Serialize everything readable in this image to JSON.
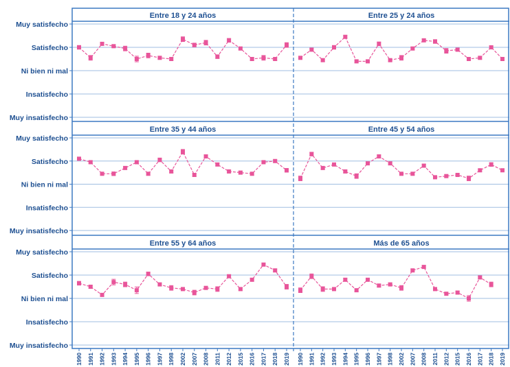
{
  "colors": {
    "frame": "#3b78c2",
    "grid": "#9fbde0",
    "series": "#e8559a",
    "text": "#1d4f91"
  },
  "chart_data": {
    "type": "line",
    "y_categories": [
      "Muy insatisfecho",
      "Insatisfecho",
      "Ni bien ni mal",
      "Satisfecho",
      "Muy satisfecho"
    ],
    "ylim": [
      1,
      5
    ],
    "x": [
      "1990",
      "1991",
      "1992",
      "1993",
      "1994",
      "1995",
      "1996",
      "1997",
      "1998",
      "2002",
      "2007",
      "2008",
      "2011",
      "2012",
      "2015",
      "2016",
      "2017",
      "2018",
      "2019"
    ],
    "panels": [
      {
        "title": "Entre 18 y 24 años",
        "values": [
          4.0,
          3.55,
          4.15,
          4.05,
          3.95,
          3.5,
          3.65,
          3.55,
          3.5,
          4.35,
          4.1,
          4.2,
          3.6,
          4.3,
          3.95,
          3.5,
          3.55,
          3.5,
          4.1
        ],
        "err": [
          0.08,
          0.1,
          0.06,
          0.06,
          0.1,
          0.12,
          0.1,
          0.06,
          0.06,
          0.1,
          0.08,
          0.1,
          0.08,
          0.08,
          0.06,
          0.06,
          0.1,
          0.06,
          0.1
        ]
      },
      {
        "title": "Entre 25 y 24 años",
        "values": [
          3.55,
          3.9,
          3.45,
          4.0,
          4.45,
          3.4,
          3.4,
          4.15,
          3.45,
          3.55,
          3.95,
          4.3,
          4.25,
          3.85,
          3.9,
          3.5,
          3.55,
          4.0,
          3.5
        ],
        "err": [
          0.06,
          0.06,
          0.06,
          0.08,
          0.06,
          0.06,
          0.06,
          0.08,
          0.06,
          0.1,
          0.06,
          0.06,
          0.08,
          0.1,
          0.06,
          0.06,
          0.06,
          0.06,
          0.06
        ]
      },
      {
        "title": "Entre 35 y 44 años",
        "values": [
          4.1,
          3.95,
          3.45,
          3.45,
          3.7,
          3.95,
          3.45,
          4.05,
          3.55,
          4.4,
          3.4,
          4.2,
          3.85,
          3.55,
          3.5,
          3.45,
          3.95,
          4.0,
          3.6
        ],
        "err": [
          0.06,
          0.06,
          0.06,
          0.08,
          0.06,
          0.06,
          0.06,
          0.08,
          0.06,
          0.1,
          0.06,
          0.06,
          0.06,
          0.06,
          0.06,
          0.06,
          0.06,
          0.06,
          0.08
        ]
      },
      {
        "title": "Entre 45 y 54 años",
        "values": [
          3.25,
          4.3,
          3.7,
          3.85,
          3.55,
          3.35,
          3.9,
          4.2,
          3.9,
          3.45,
          3.45,
          3.8,
          3.3,
          3.35,
          3.4,
          3.25,
          3.6,
          3.85,
          3.6
        ],
        "err": [
          0.1,
          0.08,
          0.06,
          0.06,
          0.06,
          0.1,
          0.06,
          0.06,
          0.06,
          0.06,
          0.06,
          0.06,
          0.06,
          0.06,
          0.06,
          0.1,
          0.06,
          0.08,
          0.06
        ]
      },
      {
        "title": "Entre 55 y 64 años",
        "values": [
          3.65,
          3.5,
          3.15,
          3.7,
          3.6,
          3.35,
          4.05,
          3.6,
          3.45,
          3.4,
          3.25,
          3.45,
          3.4,
          3.95,
          3.4,
          3.8,
          4.45,
          4.2,
          3.5
        ],
        "err": [
          0.08,
          0.06,
          0.06,
          0.12,
          0.1,
          0.14,
          0.08,
          0.06,
          0.1,
          0.06,
          0.1,
          0.06,
          0.1,
          0.06,
          0.06,
          0.06,
          0.06,
          0.06,
          0.1
        ]
      },
      {
        "title": "Más de 65 años",
        "values": [
          3.35,
          3.95,
          3.4,
          3.4,
          3.8,
          3.35,
          3.8,
          3.55,
          3.6,
          3.45,
          4.2,
          4.35,
          3.4,
          3.2,
          3.25,
          3.0,
          3.9,
          3.6,
          null
        ],
        "err": [
          0.1,
          0.1,
          0.1,
          0.06,
          0.06,
          0.06,
          0.06,
          0.06,
          0.06,
          0.1,
          0.06,
          0.06,
          0.06,
          0.06,
          0.06,
          0.12,
          0.06,
          0.1,
          null
        ]
      }
    ]
  }
}
